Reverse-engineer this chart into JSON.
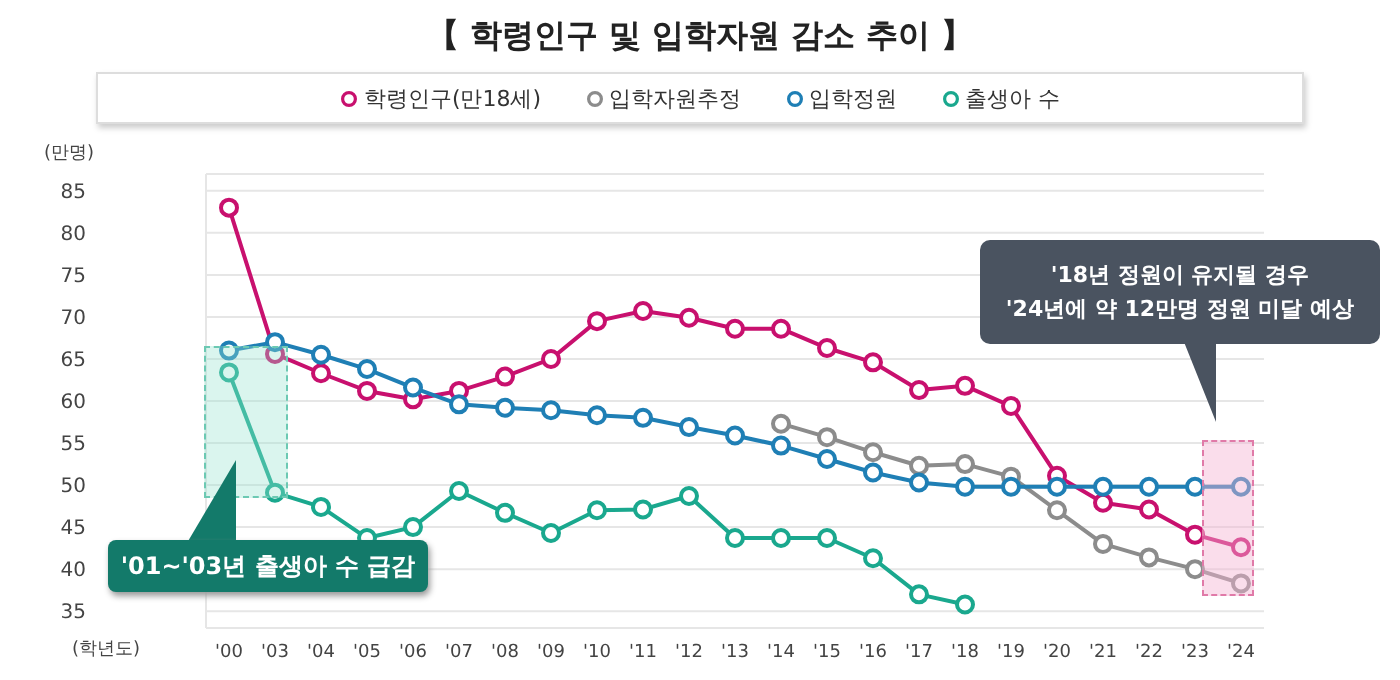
{
  "chart_data": {
    "type": "line",
    "title": "【 학령인구 및 입학자원 감소 추이 】",
    "xlabel": "(학년도)",
    "ylabel": "(만명)",
    "categories": [
      "'00",
      "'03",
      "'04",
      "'05",
      "'06",
      "'07",
      "'08",
      "'09",
      "'10",
      "'11",
      "'12",
      "'13",
      "'14",
      "'15",
      "'16",
      "'17",
      "'18",
      "'19",
      "'20",
      "'21",
      "'22",
      "'23",
      "'24"
    ],
    "series": [
      {
        "name": "학령인구(만18세)",
        "color": "#c8106e",
        "values": [
          83,
          65.6,
          63.3,
          61.2,
          60.2,
          61.2,
          62.9,
          65,
          69.5,
          70.7,
          69.9,
          68.6,
          68.6,
          66.3,
          64.6,
          61.3,
          61.8,
          59.4,
          51.1,
          47.9,
          47.1,
          44.1,
          42.6
        ]
      },
      {
        "name": "입학자원추정",
        "color": "#8c8c8c",
        "values": [
          null,
          null,
          null,
          null,
          null,
          null,
          null,
          null,
          null,
          null,
          null,
          null,
          57.3,
          55.7,
          53.9,
          52.3,
          52.5,
          51,
          47,
          43,
          41.4,
          40,
          38.3
        ]
      },
      {
        "name": "입학정원",
        "color": "#1f7fb5",
        "values": [
          66,
          67,
          65.5,
          63.8,
          61.6,
          59.6,
          59.2,
          58.9,
          58.3,
          58,
          56.9,
          55.9,
          54.7,
          53.1,
          51.5,
          50.3,
          49.8,
          49.8,
          49.8,
          49.8,
          49.8,
          49.8,
          49.8
        ]
      },
      {
        "name": "출생아 수",
        "color": "#1aa88e",
        "values": [
          63.4,
          49.1,
          47.4,
          43.7,
          45,
          49.3,
          46.7,
          44.3,
          47,
          47.1,
          48.7,
          43.7,
          43.7,
          43.7,
          41.3,
          37,
          35.8,
          null,
          null,
          null,
          null,
          null,
          null
        ]
      }
    ],
    "ylim": [
      33,
      87
    ],
    "yticks": [
      35,
      40,
      45,
      50,
      55,
      60,
      65,
      70,
      75,
      80,
      85
    ],
    "grid": "y",
    "legend": "top",
    "marker": "circle",
    "line_style": "solid",
    "annotations": [
      "'01~'03년 출생아 수 급감",
      "'18년 정원이 유지될 경우\n'24년에 약 12만명 정원 미달 예상"
    ]
  }
}
